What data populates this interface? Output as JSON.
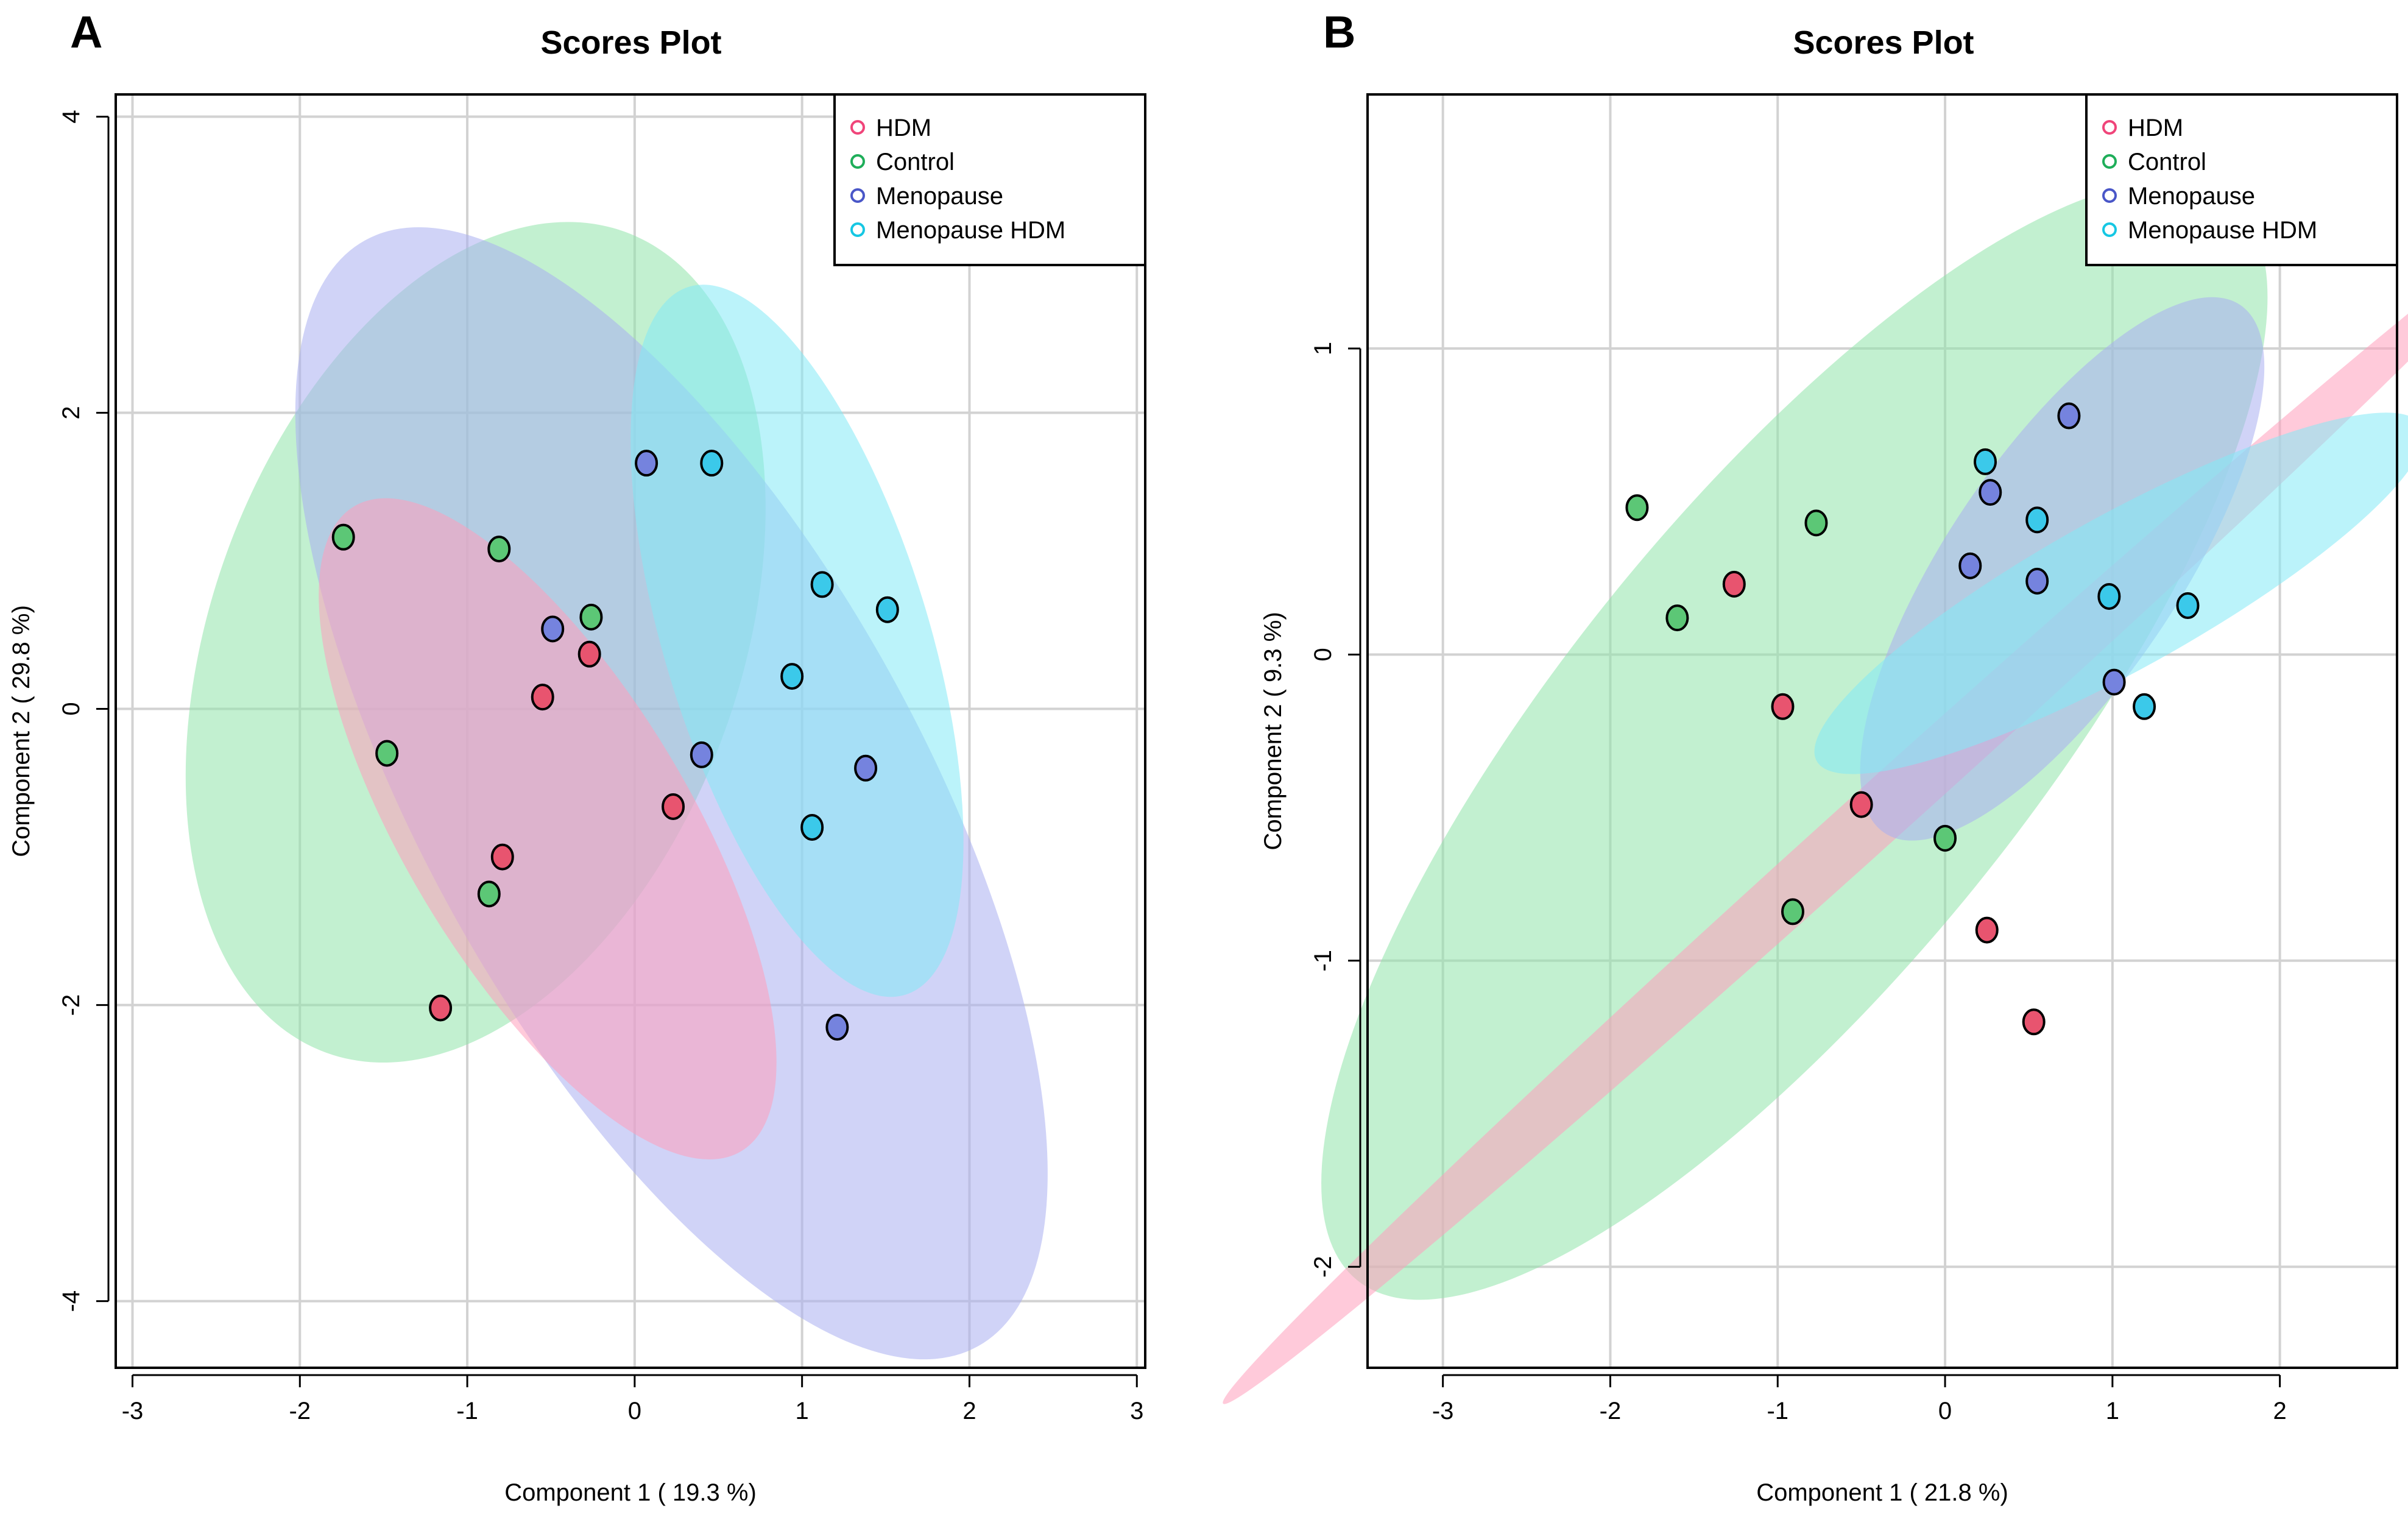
{
  "groups": [
    {
      "name": "HDM",
      "color": "#f0457a",
      "fill": "#ff9fbb",
      "point": "#e8546f"
    },
    {
      "name": "Control",
      "color": "#1fae5a",
      "fill": "#8fe3a9",
      "point": "#5cc776"
    },
    {
      "name": "Menopause",
      "color": "#4a57c8",
      "fill": "#a9aff0",
      "point": "#7583de"
    },
    {
      "name": "Menopause HDM",
      "color": "#16c7e3",
      "fill": "#84e9f6",
      "point": "#3bc9ea"
    }
  ],
  "chart_data": [
    {
      "panel": "A",
      "type": "scatter",
      "title": "Scores Plot",
      "xlabel": "Component 1 ( 19.3 %)",
      "ylabel": "Component 2 ( 29.8 %)",
      "xlim": [
        -3.1,
        3.05
      ],
      "ylim": [
        -4.45,
        4.15
      ],
      "xticks": [
        -3,
        -2,
        -1,
        0,
        1,
        2,
        3
      ],
      "yticks": [
        4,
        2,
        0,
        -2,
        -4
      ],
      "legend": "top-right",
      "series": [
        {
          "name": "HDM",
          "points": [
            [
              -0.27,
              0.37
            ],
            [
              -0.55,
              0.08
            ],
            [
              0.23,
              -0.66
            ],
            [
              -0.79,
              -1.0
            ],
            [
              -1.16,
              -2.02
            ]
          ]
        },
        {
          "name": "Control",
          "points": [
            [
              -1.74,
              1.16
            ],
            [
              -0.81,
              1.08
            ],
            [
              -0.26,
              0.62
            ],
            [
              -1.48,
              -0.3
            ],
            [
              -0.87,
              -1.25
            ]
          ]
        },
        {
          "name": "Menopause",
          "points": [
            [
              0.07,
              1.66
            ],
            [
              -0.49,
              0.54
            ],
            [
              0.4,
              -0.31
            ],
            [
              1.38,
              -0.4
            ],
            [
              1.21,
              -2.15
            ]
          ]
        },
        {
          "name": "Menopause HDM",
          "points": [
            [
              0.46,
              1.66
            ],
            [
              1.12,
              0.84
            ],
            [
              1.51,
              0.67
            ],
            [
              0.94,
              0.22
            ],
            [
              1.06,
              -0.8
            ]
          ]
        }
      ],
      "ellipses": [
        {
          "group": "Control",
          "center": [
            -0.95,
            0.45
          ],
          "axes": [
            1.58,
            2.95
          ],
          "angle": 20
        },
        {
          "group": "Menopause",
          "center": [
            0.22,
            -0.57
          ],
          "axes": [
            1.49,
            4.27
          ],
          "angle": -29
        },
        {
          "group": "Menopause HDM",
          "center": [
            0.97,
            0.46
          ],
          "axes": [
            0.79,
            2.5
          ],
          "angle": -17
        },
        {
          "group": "HDM",
          "center": [
            -0.52,
            -0.81
          ],
          "axes": [
            0.85,
            2.54
          ],
          "angle": -31
        }
      ]
    },
    {
      "panel": "B",
      "type": "scatter",
      "title": "Scores Plot",
      "xlabel": "Component 1 ( 21.8 %)",
      "ylabel": "Component 2 ( 9.3 %)",
      "xlim": [
        -3.45,
        2.7
      ],
      "ylim": [
        -2.33,
        1.83
      ],
      "xticks": [
        -3,
        -2,
        -1,
        0,
        1,
        2
      ],
      "yticks": [
        1,
        0,
        -1,
        -2
      ],
      "legend": "top-right",
      "series": [
        {
          "name": "HDM",
          "points": [
            [
              -1.26,
              0.23
            ],
            [
              -0.97,
              -0.17
            ],
            [
              -0.5,
              -0.49
            ],
            [
              0.25,
              -0.9
            ],
            [
              0.53,
              -1.2
            ]
          ]
        },
        {
          "name": "Control",
          "points": [
            [
              -1.84,
              0.48
            ],
            [
              -1.6,
              0.12
            ],
            [
              -0.77,
              0.43
            ],
            [
              0.0,
              -0.6
            ],
            [
              -0.91,
              -0.84
            ]
          ]
        },
        {
          "name": "Menopause",
          "points": [
            [
              0.74,
              0.78
            ],
            [
              0.27,
              0.53
            ],
            [
              0.15,
              0.29
            ],
            [
              0.55,
              0.24
            ],
            [
              1.01,
              -0.09
            ]
          ]
        },
        {
          "name": "Menopause HDM",
          "points": [
            [
              0.24,
              0.63
            ],
            [
              0.55,
              0.44
            ],
            [
              0.98,
              0.19
            ],
            [
              1.45,
              0.16
            ],
            [
              1.19,
              -0.17
            ]
          ]
        }
      ],
      "ellipses": [
        {
          "group": "Control",
          "center": [
            -0.9,
            -0.28
          ],
          "axes": [
            1.39,
            2.27
          ],
          "angle": 39
        },
        {
          "group": "HDM",
          "center": [
            -0.4,
            -0.52
          ],
          "axes": [
            0.18,
            2.88
          ],
          "angle": 48
        },
        {
          "group": "Menopause",
          "center": [
            0.7,
            0.28
          ],
          "axes": [
            0.69,
            1.04
          ],
          "angle": 34
        },
        {
          "group": "Menopause HDM",
          "center": [
            1.04,
            0.2
          ],
          "axes": [
            0.46,
            1.13
          ],
          "angle": 61
        }
      ]
    }
  ]
}
